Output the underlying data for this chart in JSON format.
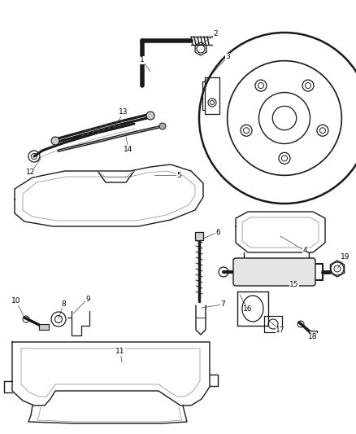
{
  "background_color": "#ffffff",
  "line_color": "#1a1a1a",
  "label_color": "#000000",
  "label_fontsize": 6.5,
  "leader_line_color": "#444444",
  "fig_width": 4.38,
  "fig_height": 5.33,
  "dpi": 100
}
